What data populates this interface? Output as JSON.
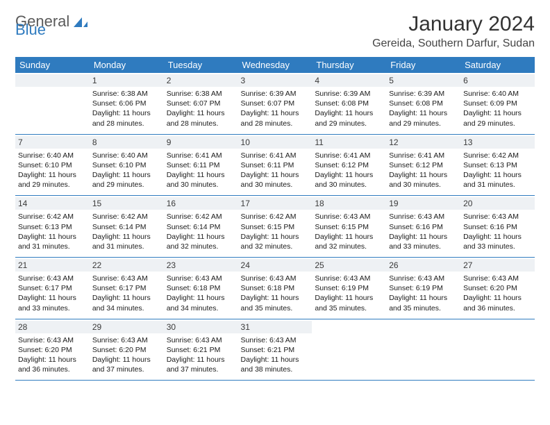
{
  "brand": {
    "part1": "General",
    "part2": "Blue"
  },
  "title": "January 2024",
  "location": "Gereida, Southern Darfur, Sudan",
  "colors": {
    "header_bg": "#2f7bbf",
    "header_text": "#ffffff",
    "daynum_bg": "#eef1f4",
    "border": "#2f7bbf",
    "text": "#1a1a1a",
    "brand_gray": "#5a5a5a",
    "brand_blue": "#2f7bbf"
  },
  "weekdays": [
    "Sunday",
    "Monday",
    "Tuesday",
    "Wednesday",
    "Thursday",
    "Friday",
    "Saturday"
  ],
  "start_offset": 1,
  "days": [
    {
      "n": "1",
      "sunrise": "6:38 AM",
      "sunset": "6:06 PM",
      "daylight": "11 hours and 28 minutes."
    },
    {
      "n": "2",
      "sunrise": "6:38 AM",
      "sunset": "6:07 PM",
      "daylight": "11 hours and 28 minutes."
    },
    {
      "n": "3",
      "sunrise": "6:39 AM",
      "sunset": "6:07 PM",
      "daylight": "11 hours and 28 minutes."
    },
    {
      "n": "4",
      "sunrise": "6:39 AM",
      "sunset": "6:08 PM",
      "daylight": "11 hours and 29 minutes."
    },
    {
      "n": "5",
      "sunrise": "6:39 AM",
      "sunset": "6:08 PM",
      "daylight": "11 hours and 29 minutes."
    },
    {
      "n": "6",
      "sunrise": "6:40 AM",
      "sunset": "6:09 PM",
      "daylight": "11 hours and 29 minutes."
    },
    {
      "n": "7",
      "sunrise": "6:40 AM",
      "sunset": "6:10 PM",
      "daylight": "11 hours and 29 minutes."
    },
    {
      "n": "8",
      "sunrise": "6:40 AM",
      "sunset": "6:10 PM",
      "daylight": "11 hours and 29 minutes."
    },
    {
      "n": "9",
      "sunrise": "6:41 AM",
      "sunset": "6:11 PM",
      "daylight": "11 hours and 30 minutes."
    },
    {
      "n": "10",
      "sunrise": "6:41 AM",
      "sunset": "6:11 PM",
      "daylight": "11 hours and 30 minutes."
    },
    {
      "n": "11",
      "sunrise": "6:41 AM",
      "sunset": "6:12 PM",
      "daylight": "11 hours and 30 minutes."
    },
    {
      "n": "12",
      "sunrise": "6:41 AM",
      "sunset": "6:12 PM",
      "daylight": "11 hours and 30 minutes."
    },
    {
      "n": "13",
      "sunrise": "6:42 AM",
      "sunset": "6:13 PM",
      "daylight": "11 hours and 31 minutes."
    },
    {
      "n": "14",
      "sunrise": "6:42 AM",
      "sunset": "6:13 PM",
      "daylight": "11 hours and 31 minutes."
    },
    {
      "n": "15",
      "sunrise": "6:42 AM",
      "sunset": "6:14 PM",
      "daylight": "11 hours and 31 minutes."
    },
    {
      "n": "16",
      "sunrise": "6:42 AM",
      "sunset": "6:14 PM",
      "daylight": "11 hours and 32 minutes."
    },
    {
      "n": "17",
      "sunrise": "6:42 AM",
      "sunset": "6:15 PM",
      "daylight": "11 hours and 32 minutes."
    },
    {
      "n": "18",
      "sunrise": "6:43 AM",
      "sunset": "6:15 PM",
      "daylight": "11 hours and 32 minutes."
    },
    {
      "n": "19",
      "sunrise": "6:43 AM",
      "sunset": "6:16 PM",
      "daylight": "11 hours and 33 minutes."
    },
    {
      "n": "20",
      "sunrise": "6:43 AM",
      "sunset": "6:16 PM",
      "daylight": "11 hours and 33 minutes."
    },
    {
      "n": "21",
      "sunrise": "6:43 AM",
      "sunset": "6:17 PM",
      "daylight": "11 hours and 33 minutes."
    },
    {
      "n": "22",
      "sunrise": "6:43 AM",
      "sunset": "6:17 PM",
      "daylight": "11 hours and 34 minutes."
    },
    {
      "n": "23",
      "sunrise": "6:43 AM",
      "sunset": "6:18 PM",
      "daylight": "11 hours and 34 minutes."
    },
    {
      "n": "24",
      "sunrise": "6:43 AM",
      "sunset": "6:18 PM",
      "daylight": "11 hours and 35 minutes."
    },
    {
      "n": "25",
      "sunrise": "6:43 AM",
      "sunset": "6:19 PM",
      "daylight": "11 hours and 35 minutes."
    },
    {
      "n": "26",
      "sunrise": "6:43 AM",
      "sunset": "6:19 PM",
      "daylight": "11 hours and 35 minutes."
    },
    {
      "n": "27",
      "sunrise": "6:43 AM",
      "sunset": "6:20 PM",
      "daylight": "11 hours and 36 minutes."
    },
    {
      "n": "28",
      "sunrise": "6:43 AM",
      "sunset": "6:20 PM",
      "daylight": "11 hours and 36 minutes."
    },
    {
      "n": "29",
      "sunrise": "6:43 AM",
      "sunset": "6:20 PM",
      "daylight": "11 hours and 37 minutes."
    },
    {
      "n": "30",
      "sunrise": "6:43 AM",
      "sunset": "6:21 PM",
      "daylight": "11 hours and 37 minutes."
    },
    {
      "n": "31",
      "sunrise": "6:43 AM",
      "sunset": "6:21 PM",
      "daylight": "11 hours and 38 minutes."
    }
  ]
}
